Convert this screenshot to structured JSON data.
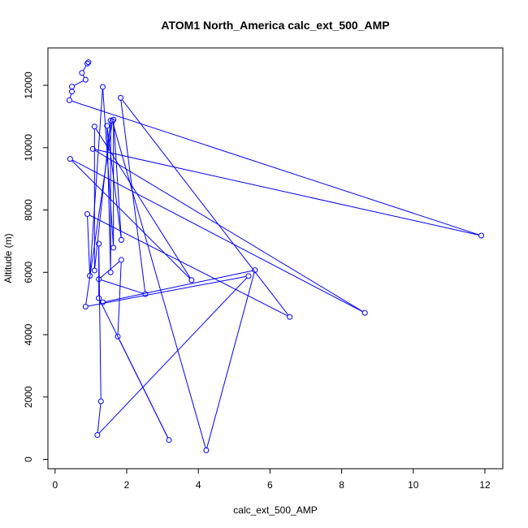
{
  "chart_data": {
    "type": "line",
    "title": "ATOM1 North_America calc_ext_500_AMP",
    "xlabel": "calc_ext_500_AMP",
    "ylabel": "Altitude (m)",
    "xlim": [
      -0.2,
      12.5
    ],
    "ylim": [
      -300,
      13200
    ],
    "xticks": [
      "0",
      "2",
      "4",
      "6",
      "8",
      "10",
      "12"
    ],
    "yticks": [
      "0",
      "2000",
      "4000",
      "6000",
      "8000",
      "10000",
      "12000"
    ],
    "grid": false,
    "legend": "none",
    "series_color": "#0000ff",
    "markers": "open-circle",
    "points": [
      [
        0.93,
        12740
      ],
      [
        0.9,
        12700
      ],
      [
        0.75,
        12400
      ],
      [
        0.85,
        12180
      ],
      [
        0.47,
        11960
      ],
      [
        0.47,
        11800
      ],
      [
        0.4,
        11520
      ],
      [
        11.9,
        7180
      ],
      [
        1.05,
        9960
      ],
      [
        8.65,
        4700
      ],
      [
        0.42,
        9640
      ],
      [
        3.81,
        5750
      ],
      [
        1.1,
        10680
      ],
      [
        1.1,
        6060
      ],
      [
        1.55,
        10870
      ],
      [
        1.55,
        6000
      ],
      [
        1.45,
        10700
      ],
      [
        1.85,
        7040
      ],
      [
        1.63,
        10900
      ],
      [
        1.63,
        6790
      ],
      [
        1.33,
        11950
      ],
      [
        0.97,
        5890
      ],
      [
        0.9,
        7870
      ],
      [
        6.55,
        4570
      ],
      [
        1.83,
        11600
      ],
      [
        2.52,
        5300
      ],
      [
        1.22,
        5780
      ],
      [
        1.85,
        6400
      ],
      [
        1.75,
        3940
      ],
      [
        3.18,
        620
      ],
      [
        1.22,
        5170
      ],
      [
        1.22,
        6920
      ],
      [
        1.28,
        1860
      ],
      [
        1.18,
        780
      ],
      [
        5.4,
        5880
      ],
      [
        0.85,
        4900
      ],
      [
        1.6,
        10850
      ],
      [
        4.22,
        290
      ],
      [
        5.58,
        6070
      ],
      [
        1.33,
        5040
      ]
    ]
  }
}
